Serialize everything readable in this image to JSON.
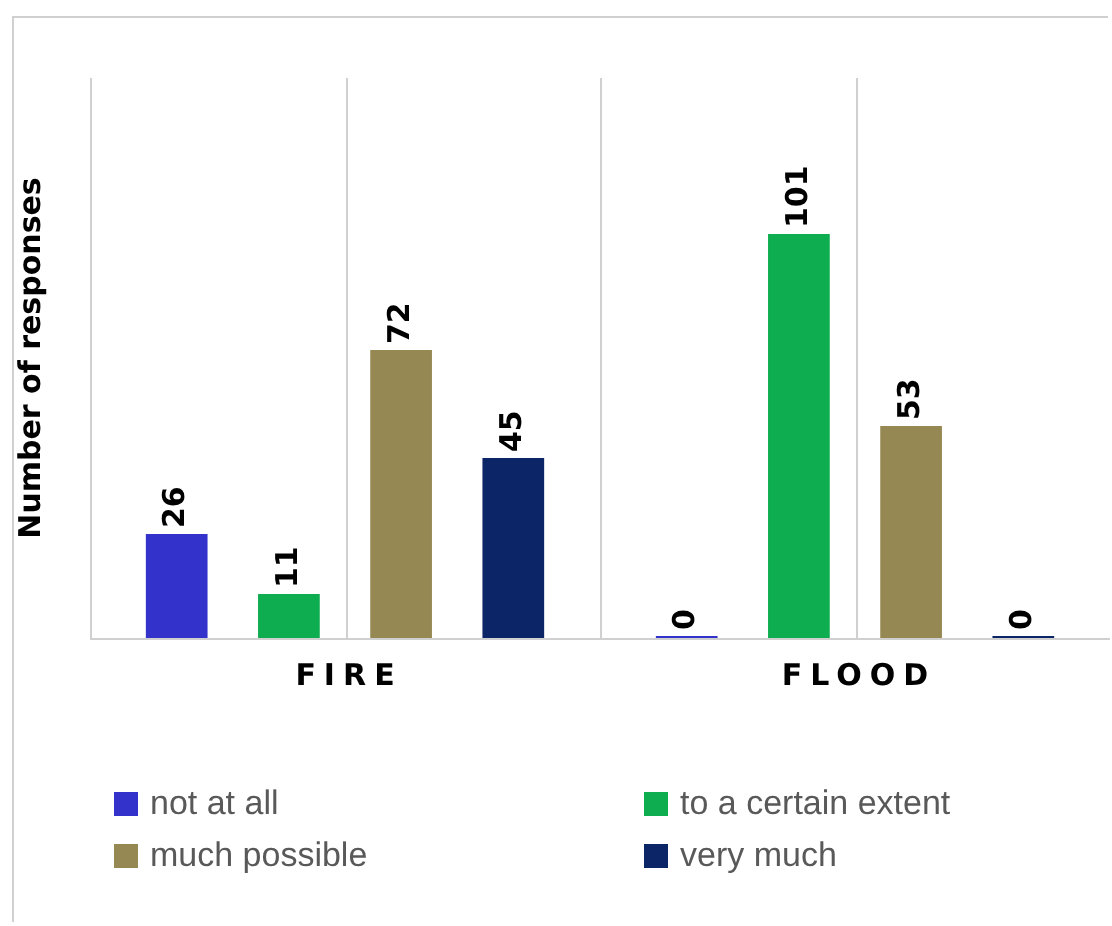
{
  "chart_data": {
    "type": "bar",
    "ylabel": "Number of responses",
    "categories": [
      "FIRE",
      "FLOOD"
    ],
    "series": [
      {
        "name": "not at all",
        "color": "#3333cc",
        "values": [
          26,
          0
        ]
      },
      {
        "name": "to a certain extent",
        "color": "#0ead4f",
        "values": [
          11,
          101
        ]
      },
      {
        "name": "much possible",
        "color": "#958853",
        "values": [
          72,
          53
        ]
      },
      {
        "name": "very much",
        "color": "#0b2566",
        "values": [
          45,
          0
        ]
      }
    ],
    "data_labels": true,
    "grid": "x",
    "legend": "bottom"
  }
}
